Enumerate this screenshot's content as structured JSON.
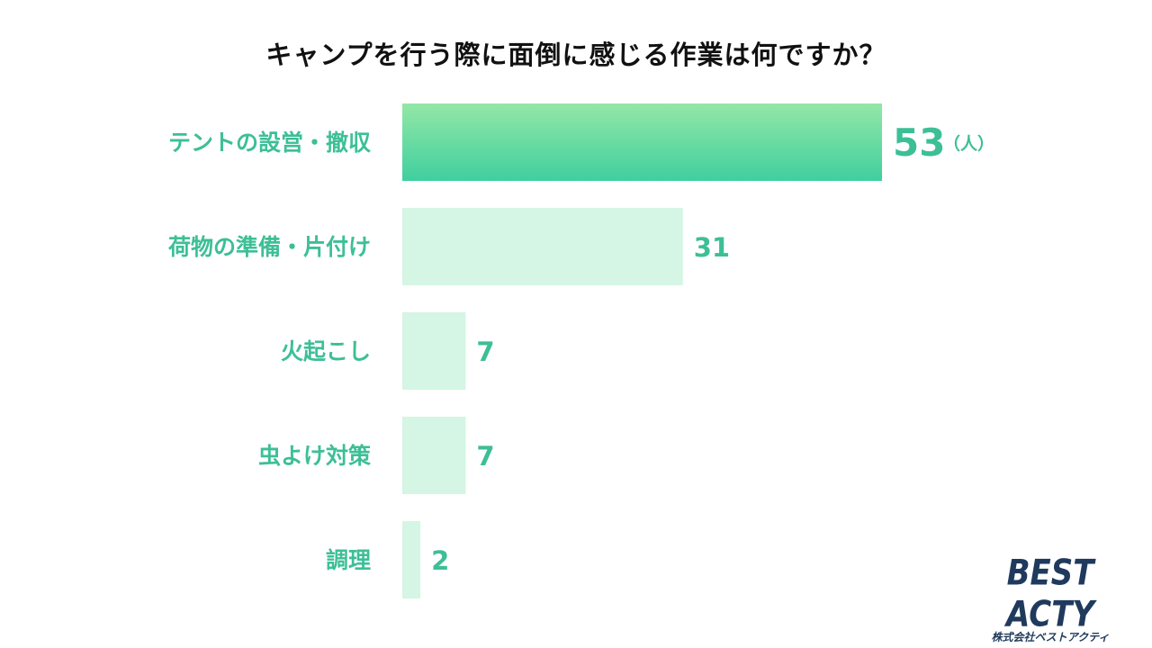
{
  "chart_data": {
    "type": "bar",
    "orientation": "horizontal",
    "title": "キャンプを行う際に面倒に感じる作業は何ですか？",
    "categories": [
      "テントの設営・撤収",
      "荷物の準備・片付け",
      "火起こし",
      "虫よけ対策",
      "調理"
    ],
    "values": [
      53,
      31,
      7,
      7,
      2
    ],
    "value_labels": [
      "53",
      "31",
      "7",
      "7",
      "2"
    ],
    "unit": "（人）",
    "highlight_index": 0,
    "colors": {
      "label": "#3dbf96",
      "bar": "#d5f5e5",
      "highlight_top": "#93e7a6",
      "highlight_bottom": "#40cf9f"
    },
    "grid": false,
    "legend": "none"
  },
  "brand": {
    "name": "BEST ACTY",
    "subtitle": "株式会社ベストアクティ",
    "color": "#1f3a5c"
  }
}
